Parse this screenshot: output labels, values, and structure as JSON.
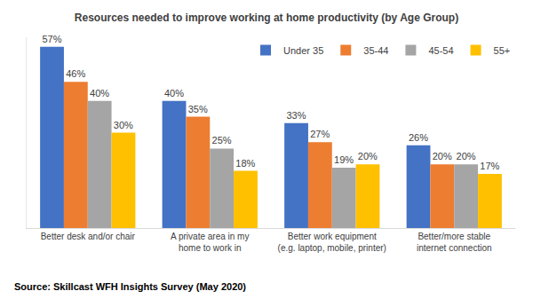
{
  "chart_data": {
    "type": "bar",
    "title": "Resources needed to improve working at home productivity (by Age Group)",
    "categories": [
      "Better desk and/or chair",
      "A private area in my home to work in",
      "Better work equipment (e.g. laptop, mobile, printer)",
      "Better/more stable internet connection"
    ],
    "series": [
      {
        "name": "Under 35",
        "color": "#4472c4",
        "values": [
          57,
          40,
          33,
          26
        ],
        "value_labels": [
          "57%",
          "40%",
          "33%",
          "26%"
        ]
      },
      {
        "name": "35-44",
        "color": "#ed7d31",
        "values": [
          46,
          35,
          27,
          20
        ],
        "value_labels": [
          "46%",
          "35%",
          "27%",
          "20%"
        ]
      },
      {
        "name": "45-54",
        "color": "#a5a5a5",
        "values": [
          40,
          25,
          19,
          20
        ],
        "value_labels": [
          "40%",
          "25%",
          "19%",
          "20%"
        ]
      },
      {
        "name": "55+",
        "color": "#ffc000",
        "values": [
          30,
          18,
          20,
          17
        ],
        "value_labels": [
          "30%",
          "18%",
          "20%",
          "17%"
        ]
      }
    ],
    "ylim": [
      0,
      60
    ],
    "grid": false,
    "legend": "upper right",
    "data_labels": true,
    "tick_labels": "x",
    "annotations": [
      "Source: Skillcast WFH Insights Survey (May 2020)"
    ]
  }
}
